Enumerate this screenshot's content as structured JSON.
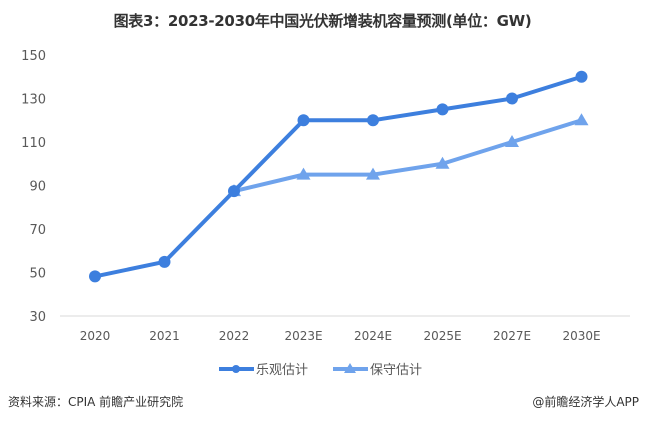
{
  "title": "图表3：2023-2030年中国光伏新增装机容量预测(单位：GW)",
  "footer": {
    "source": "资料来源：CPIA 前瞻产业研究院",
    "credit": "@前瞻经济学人APP"
  },
  "colors": {
    "optimistic": "#3d7fde",
    "conservative": "#6fa3ec",
    "axis": "#d9d9d9",
    "text": "#595959"
  },
  "chart_data": {
    "type": "line",
    "title": "图表3：2023-2030年中国光伏新增装机容量预测(单位：GW)",
    "xlabel": "",
    "ylabel": "GW",
    "ylim": [
      30,
      150
    ],
    "yticks": [
      30,
      50,
      70,
      90,
      110,
      130,
      150
    ],
    "grid": false,
    "legend_position": "bottom",
    "categories": [
      "2020",
      "2021",
      "2022",
      "2023E",
      "2024E",
      "2025E",
      "2027E",
      "2030E"
    ],
    "series": [
      {
        "name": "乐观估计",
        "marker": "circle",
        "values": [
          48.2,
          54.9,
          87.4,
          120,
          120,
          125,
          130,
          140
        ]
      },
      {
        "name": "保守估计",
        "marker": "triangle",
        "values": [
          null,
          null,
          87.4,
          95,
          95,
          100,
          110,
          120
        ]
      }
    ]
  }
}
